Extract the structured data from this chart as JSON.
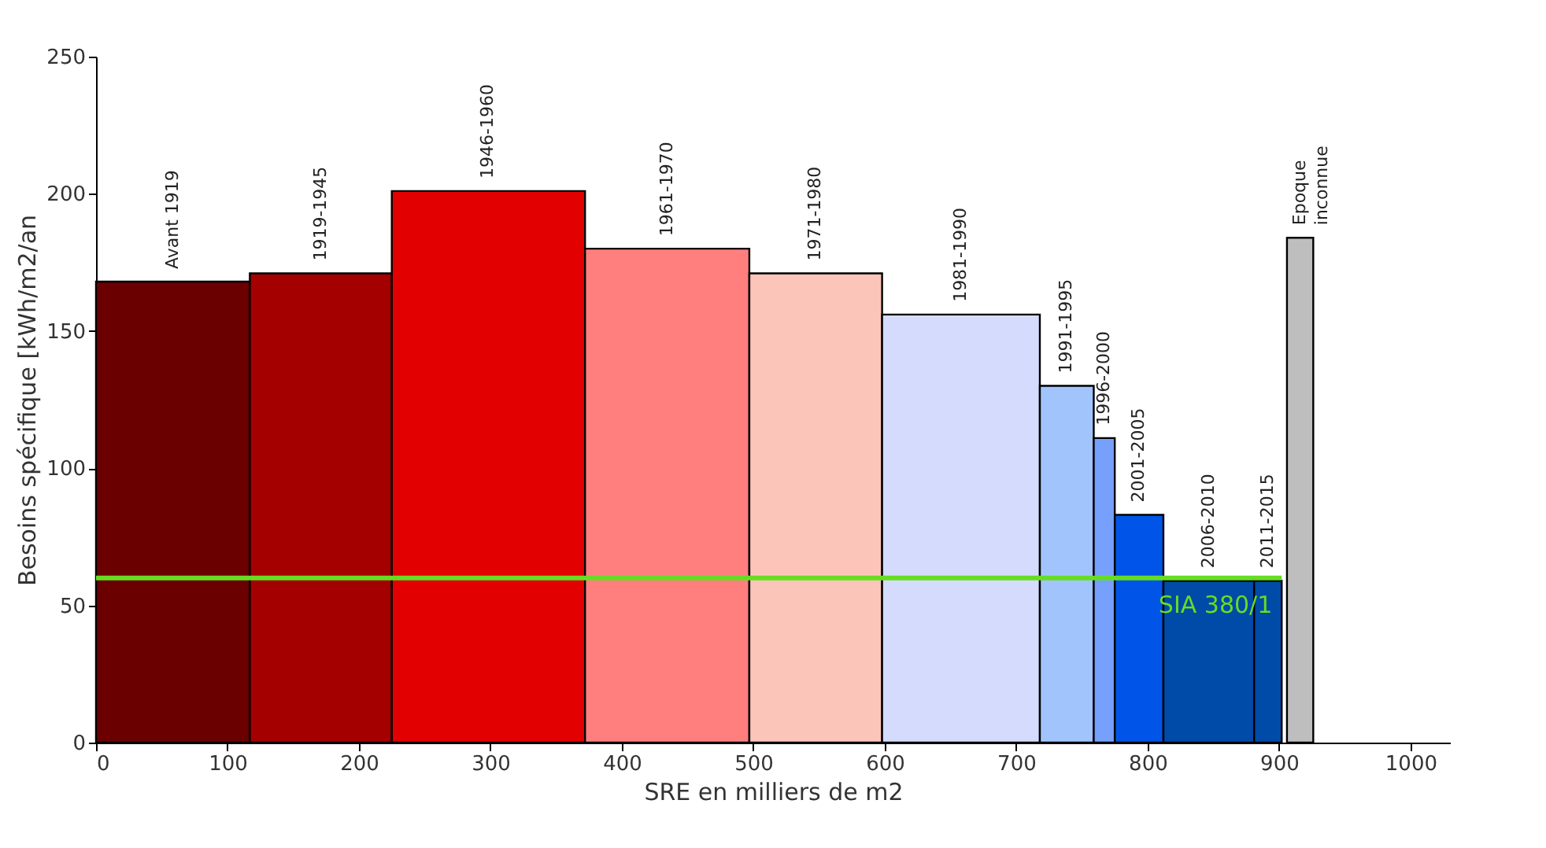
{
  "chart_data": {
    "type": "histogram",
    "xlabel": "SRE en milliers de m2",
    "ylabel": "Besoins spécifique [kWh/m2/an",
    "bins": [
      0,
      117,
      225,
      372,
      497,
      598,
      718,
      759,
      775,
      812,
      881,
      902,
      906,
      926
    ],
    "values": [
      168,
      171,
      201,
      180,
      171,
      156,
      130,
      111,
      83,
      59,
      59,
      null,
      184
    ],
    "colors": [
      "#6b0000",
      "#a50000",
      "#e30000",
      "#ff7f7f",
      "#fcc5b9",
      "#d5dbfc",
      "#a2c4fc",
      "#77a0fc",
      "#0055e8",
      "#004aa8",
      "#004aa8",
      null,
      "#bebebe"
    ],
    "xlim": [
      0,
      1030
    ],
    "xticks": [
      0,
      100,
      200,
      300,
      400,
      500,
      600,
      700,
      800,
      900,
      1000
    ],
    "ylim": [
      0,
      250
    ],
    "yticks": [
      0,
      50,
      100,
      150,
      200,
      250
    ],
    "grid": false,
    "ref_lines": [
      {
        "axis": "y",
        "value": 60,
        "label": "SIA 380/1",
        "color": "#66dd22"
      }
    ],
    "annotations": [
      {
        "text": "Avant 1919",
        "x": 58.5,
        "y": 168
      },
      {
        "text": "1919-1945",
        "x": 171,
        "y": 171
      },
      {
        "text": "1946-1960",
        "x": 298.5,
        "y": 201
      },
      {
        "text": "1961-1970",
        "x": 434.5,
        "y": 180
      },
      {
        "text": "1971-1980",
        "x": 547.5,
        "y": 171
      },
      {
        "text": "1981-1990",
        "x": 658,
        "y": 156
      },
      {
        "text": "1991-1995",
        "x": 738.5,
        "y": 130
      },
      {
        "text": "1996-2000",
        "x": 767,
        "y": 111
      },
      {
        "text": "2001-2005",
        "x": 793.5,
        "y": 83
      },
      {
        "text": "2006-2010",
        "x": 846.5,
        "y": 59
      },
      {
        "text": "2011-2015",
        "x": 891.5,
        "y": 59
      },
      {
        "text": "Epoque\ninconnue",
        "x": 916,
        "y": 184
      }
    ]
  }
}
